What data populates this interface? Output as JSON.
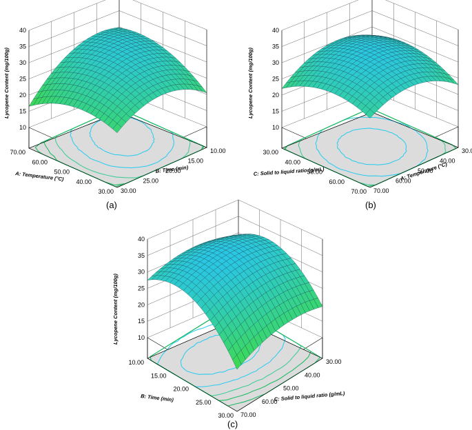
{
  "chart_data": [
    {
      "type": "surface3d",
      "panel_label": "(a)",
      "zlabel": "Lycopene Content (mg/100g)",
      "zlim": [
        10,
        40
      ],
      "z_ticks": [
        "10",
        "15",
        "20",
        "25",
        "30",
        "35",
        "40"
      ],
      "x_axis": {
        "label": "A: Temperature (°C)",
        "range": [
          30,
          70
        ],
        "ticks": [
          "70.00",
          "60.00",
          "50.00",
          "40.00",
          "30.00"
        ]
      },
      "y_axis": {
        "label": "B: Time (min)",
        "range": [
          10,
          30
        ],
        "ticks": [
          "10.00",
          "15.00",
          "20.00",
          "25.00",
          "30.00"
        ]
      },
      "surface_samples": [
        {
          "temperature": 70,
          "time": 10,
          "lycopene": 25
        },
        {
          "temperature": 50,
          "time": 20,
          "lycopene": 31
        },
        {
          "temperature": 30,
          "time": 10,
          "lycopene": 26
        },
        {
          "temperature": 30,
          "time": 30,
          "lycopene": 16
        },
        {
          "temperature": 70,
          "time": 30,
          "lycopene": 22
        }
      ]
    },
    {
      "type": "surface3d",
      "panel_label": "(b)",
      "zlabel": "Lycopene Content (mg/100g)",
      "zlim": [
        10,
        40
      ],
      "z_ticks": [
        "10",
        "15",
        "20",
        "25",
        "30",
        "35",
        "40"
      ],
      "x_axis": {
        "label": "C: Solid to liquid ratio (g/mL)",
        "range": [
          30,
          70
        ],
        "ticks": [
          "30.00",
          "40.00",
          "50.00",
          "60.00",
          "70.00"
        ]
      },
      "y_axis": {
        "label": "A: Temperature (°C)",
        "range": [
          30,
          70
        ],
        "ticks": [
          "30.00",
          "40.00",
          "50.00",
          "60.00",
          "70.00"
        ]
      },
      "surface_samples": [
        {
          "solid_to_liquid": 30,
          "temperature": 30,
          "lycopene": 25
        },
        {
          "solid_to_liquid": 50,
          "temperature": 50,
          "lycopene": 33
        },
        {
          "solid_to_liquid": 70,
          "temperature": 70,
          "lycopene": 24
        },
        {
          "solid_to_liquid": 30,
          "temperature": 70,
          "lycopene": 26
        }
      ]
    },
    {
      "type": "surface3d",
      "panel_label": "(c)",
      "zlabel": "Lycopene Content (mg/100g)",
      "zlim": [
        10,
        40
      ],
      "z_ticks": [
        "10",
        "15",
        "20",
        "25",
        "30",
        "35",
        "40"
      ],
      "x_axis": {
        "label": "B: Time (min)",
        "range": [
          10,
          30
        ],
        "ticks": [
          "10.00",
          "15.00",
          "20.00",
          "25.00",
          "30.00"
        ]
      },
      "y_axis": {
        "label": "C: Solid to liquid ratio (g/mL)",
        "range": [
          30,
          70
        ],
        "ticks": [
          "30.00",
          "40.00",
          "50.00",
          "60.00",
          "70.00"
        ]
      },
      "surface_samples": [
        {
          "time": 10,
          "solid_to_liquid": 30,
          "lycopene": 26
        },
        {
          "time": 20,
          "solid_to_liquid": 50,
          "lycopene": 33
        },
        {
          "time": 30,
          "solid_to_liquid": 30,
          "lycopene": 17
        },
        {
          "time": 10,
          "solid_to_liquid": 70,
          "lycopene": 27
        }
      ]
    }
  ],
  "colors": {
    "surface_high": "#29c6e8",
    "surface_low": "#3fdc3f",
    "floor": "#dcdcdc",
    "contour": "#33ccee",
    "contour_low": "#22bb66"
  }
}
